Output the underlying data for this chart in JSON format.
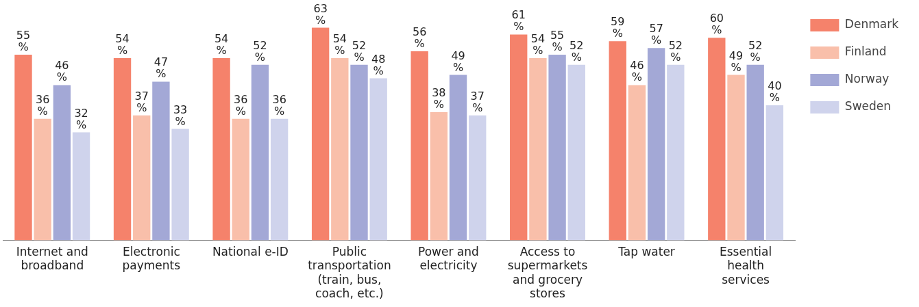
{
  "chart_data": {
    "type": "bar",
    "categories": [
      "Internet and broadband",
      "Electronic payments",
      "National e-ID",
      "Public transportation (train, bus, coach, etc.)",
      "Power and electricity",
      "Access to supermarkets and grocery stores",
      "Tap water",
      "Essential health services"
    ],
    "series": [
      {
        "name": "Denmark",
        "color": "#f5826b",
        "values": [
          55,
          54,
          54,
          63,
          56,
          61,
          59,
          60
        ],
        "value_labels": [
          "55%",
          "54%",
          "54%",
          "63%",
          "56%",
          "61%",
          "59%",
          "60%"
        ]
      },
      {
        "name": "Finland",
        "color": "#f9bfaa",
        "values": [
          36,
          37,
          36,
          54,
          38,
          54,
          46,
          49
        ],
        "value_labels": [
          "36%",
          "37%",
          "36%",
          "54%",
          "38%",
          "54%",
          "46%",
          "49%"
        ]
      },
      {
        "name": "Norway",
        "color": "#a3a8d6",
        "values": [
          46,
          47,
          52,
          52,
          49,
          55,
          57,
          52
        ],
        "value_labels": [
          "46%",
          "47%",
          "52%",
          "52%",
          "49%",
          "55%",
          "57%",
          "52%"
        ]
      },
      {
        "name": "Sweden",
        "color": "#cfd3ec",
        "values": [
          32,
          33,
          36,
          48,
          37,
          52,
          52,
          40
        ],
        "value_labels": [
          "32%",
          "33%",
          "36%",
          "48%",
          "37%",
          "52%",
          "52%",
          "40%"
        ]
      }
    ],
    "legend": "right"
  }
}
